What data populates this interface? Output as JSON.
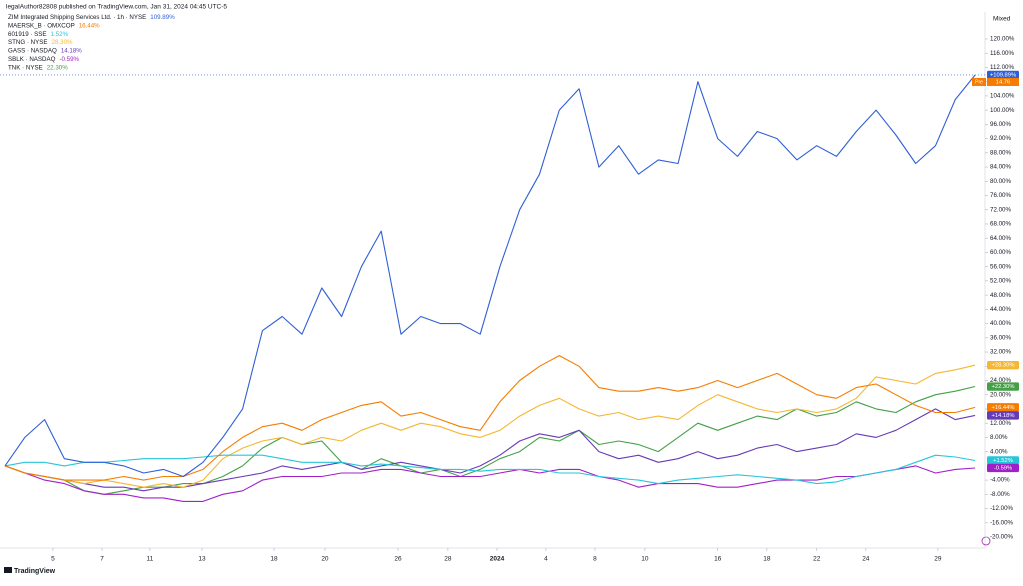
{
  "chart_data": {
    "type": "line",
    "header": "legalAuthor82808 published on TradingView.com, Jan 31, 2024 04:45 UTC-5",
    "scale_mode": "Mixed",
    "brand": "TradingView",
    "pre_label": "Pre",
    "pre_value": "14.76",
    "xlim": [
      0,
      49.5
    ],
    "xticks": [
      {
        "value": 2.42,
        "label": "5"
      },
      {
        "value": 4.9,
        "label": "7"
      },
      {
        "value": 7.32,
        "label": "11"
      },
      {
        "value": 9.95,
        "label": "13"
      },
      {
        "value": 13.59,
        "label": "18"
      },
      {
        "value": 16.16,
        "label": "20"
      },
      {
        "value": 19.85,
        "label": "26"
      },
      {
        "value": 22.37,
        "label": "28"
      },
      {
        "value": 24.85,
        "label": "2024"
      },
      {
        "value": 27.32,
        "label": "4"
      },
      {
        "value": 29.8,
        "label": "8"
      },
      {
        "value": 32.32,
        "label": "10"
      },
      {
        "value": 36.0,
        "label": "16"
      },
      {
        "value": 38.48,
        "label": "18"
      },
      {
        "value": 41.0,
        "label": "22"
      },
      {
        "value": 43.48,
        "label": "24"
      },
      {
        "value": 47.12,
        "label": "29"
      }
    ],
    "ylim": [
      -20,
      120
    ],
    "yticks": [
      {
        "value": 120,
        "label": "120.00%"
      },
      {
        "value": 116,
        "label": "116.00%"
      },
      {
        "value": 112,
        "label": "112.00%"
      },
      {
        "value": 108,
        "label": "108.00%"
      },
      {
        "value": 104,
        "label": "104.00%"
      },
      {
        "value": 100,
        "label": "100.00%"
      },
      {
        "value": 96,
        "label": "96.00%"
      },
      {
        "value": 92,
        "label": "92.00%"
      },
      {
        "value": 88,
        "label": "88.00%"
      },
      {
        "value": 84,
        "label": "84.00%"
      },
      {
        "value": 80,
        "label": "80.00%"
      },
      {
        "value": 76,
        "label": "76.00%"
      },
      {
        "value": 72,
        "label": "72.00%"
      },
      {
        "value": 68,
        "label": "68.00%"
      },
      {
        "value": 64,
        "label": "64.00%"
      },
      {
        "value": 60,
        "label": "60.00%"
      },
      {
        "value": 56,
        "label": "56.00%"
      },
      {
        "value": 52,
        "label": "52.00%"
      },
      {
        "value": 48,
        "label": "48.00%"
      },
      {
        "value": 44,
        "label": "44.00%"
      },
      {
        "value": 40,
        "label": "40.00%"
      },
      {
        "value": 36,
        "label": "36.00%"
      },
      {
        "value": 32,
        "label": "32.00%"
      },
      {
        "value": 28,
        "label": "28.00%"
      },
      {
        "value": 24,
        "label": "24.00%"
      },
      {
        "value": 20,
        "label": "20.00%"
      },
      {
        "value": 16,
        "label": "16.00%"
      },
      {
        "value": 12,
        "label": "12.00%"
      },
      {
        "value": 8,
        "label": "8.00%"
      },
      {
        "value": 4,
        "label": "4.00%"
      },
      {
        "value": -4,
        "label": "-4.00%"
      },
      {
        "value": -8,
        "label": "-8.00%"
      },
      {
        "value": -12,
        "label": "-12.00%"
      },
      {
        "value": -16,
        "label": "-16.00%"
      },
      {
        "value": -20,
        "label": "-20.00%"
      }
    ],
    "series": [
      {
        "name": "ZIM Integrated Shipping Services Ltd. · 1h · NYSE",
        "legend_value": "109.89%",
        "end_label": "+109.89%",
        "color": "#2f5fd6",
        "values": [
          0,
          8,
          13,
          2,
          1,
          1,
          0,
          -2,
          -1,
          -3,
          1,
          8,
          16,
          38,
          42,
          37,
          50,
          42,
          56,
          66,
          37,
          42,
          40,
          40,
          37,
          56,
          72,
          82,
          100,
          106,
          84,
          90,
          82,
          86,
          85,
          108,
          92,
          87,
          94,
          92,
          86,
          90,
          87,
          94,
          100,
          93,
          85,
          90,
          103,
          109.89
        ]
      },
      {
        "name": "MAERSK_B · OMXCOP",
        "legend_value": "16.44%",
        "end_label": "+16.44%",
        "color": "#f57c00",
        "values": [
          0,
          -2,
          -3,
          -4,
          -4,
          -4,
          -3,
          -4,
          -3,
          -3,
          -1,
          4,
          8,
          11,
          12,
          10,
          13,
          15,
          17,
          18,
          14,
          15,
          13,
          11,
          10,
          18,
          24,
          28,
          31,
          28,
          22,
          21,
          21,
          22,
          21,
          22,
          24,
          22,
          24,
          26,
          23,
          20,
          19,
          22,
          23,
          20,
          17,
          15,
          15,
          16.44
        ]
      },
      {
        "name": "601919 · SSE",
        "legend_value": "1.52%",
        "end_label": "+1.52%",
        "color": "#26c6da",
        "values": [
          0,
          1,
          1,
          0,
          1,
          1,
          1.5,
          2,
          2,
          2,
          2.5,
          3,
          3,
          3,
          2,
          1,
          1,
          1,
          0,
          0.5,
          0,
          -0.5,
          -1,
          -1,
          -1.5,
          -1,
          -1,
          -1,
          -2,
          -2,
          -3,
          -3.5,
          -4,
          -5,
          -4,
          -3.5,
          -3,
          -2.5,
          -3,
          -3.5,
          -4,
          -5,
          -4.5,
          -3,
          -2,
          -1,
          1,
          3,
          2.5,
          1.52
        ]
      },
      {
        "name": "STNG · NYSE",
        "legend_value": "28.30%",
        "end_label": "+28.30%",
        "color": "#f5b731",
        "values": [
          0,
          -2,
          -3,
          -4,
          -5,
          -4,
          -5,
          -6,
          -5,
          -6,
          -4,
          2,
          5,
          7,
          8,
          6,
          8,
          7,
          10,
          12,
          10,
          12,
          11,
          9,
          8,
          10,
          14,
          17,
          19,
          16,
          14,
          15,
          13,
          14,
          13,
          17,
          20,
          18,
          16,
          15,
          16,
          15,
          16,
          19,
          25,
          24,
          23,
          26,
          27,
          28.3
        ]
      },
      {
        "name": "GASS · NASDAQ",
        "legend_value": "14.18%",
        "end_label": "+14.18%",
        "color": "#673ab7",
        "values": [
          0,
          -2,
          -3,
          -4,
          -5,
          -6,
          -6,
          -7,
          -6,
          -6,
          -5,
          -4,
          -3,
          -2,
          0,
          -1,
          0,
          1,
          -1,
          0,
          1,
          0,
          -1,
          -2,
          0,
          3,
          7,
          9,
          8,
          10,
          4,
          2,
          3,
          1,
          2,
          4,
          2,
          3,
          5,
          6,
          4,
          5,
          6,
          9,
          8,
          10,
          13,
          16,
          13,
          14.18
        ]
      },
      {
        "name": "SBLK · NASDAQ",
        "legend_value": "-0.59%",
        "end_label": "-0.59%",
        "color": "#a020c8",
        "values": [
          0,
          -2,
          -4,
          -5,
          -7,
          -8,
          -8,
          -9,
          -9,
          -10,
          -10,
          -8,
          -7,
          -4,
          -3,
          -3,
          -3,
          -2,
          -2,
          -1,
          -1,
          -2,
          -3,
          -3,
          -3,
          -2,
          -1,
          -2,
          -1,
          -1,
          -3,
          -4,
          -6,
          -5,
          -5,
          -5,
          -6,
          -6,
          -5,
          -4,
          -4,
          -4,
          -3,
          -3,
          -2,
          -1,
          0,
          -2,
          -1,
          -0.59
        ]
      },
      {
        "name": "TNK · NYSE",
        "legend_value": "22.30%",
        "end_label": "+22.30%",
        "color": "#43a047",
        "values": [
          0,
          -2,
          -3,
          -4,
          -7,
          -8,
          -7,
          -6,
          -6,
          -5,
          -5,
          -3,
          0,
          5,
          8,
          6,
          7,
          1,
          -1,
          2,
          0,
          -2,
          -1,
          -3,
          -1,
          2,
          4,
          8,
          7,
          10,
          6,
          7,
          6,
          4,
          8,
          12,
          10,
          12,
          14,
          13,
          16,
          14,
          15,
          18,
          16,
          15,
          18,
          20,
          21,
          22.3
        ]
      }
    ]
  }
}
